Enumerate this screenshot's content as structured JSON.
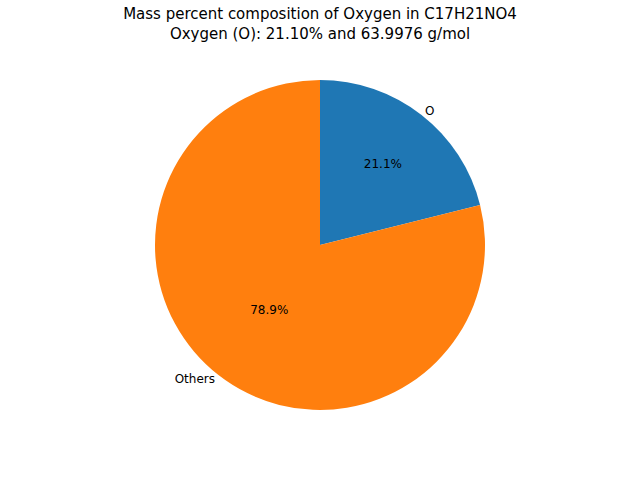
{
  "chart_data": {
    "type": "pie",
    "title": "Mass percent composition of Oxygen in C17H21NO4",
    "subtitle": "Oxygen (O): 21.10% and 63.9976 g/mol",
    "categories": [
      "O",
      "Others"
    ],
    "values": [
      21.1,
      78.9
    ],
    "value_labels": [
      "21.1%",
      "78.9%"
    ],
    "colors": [
      "#1f77b4",
      "#ff7f0e"
    ],
    "data_labels": true
  }
}
